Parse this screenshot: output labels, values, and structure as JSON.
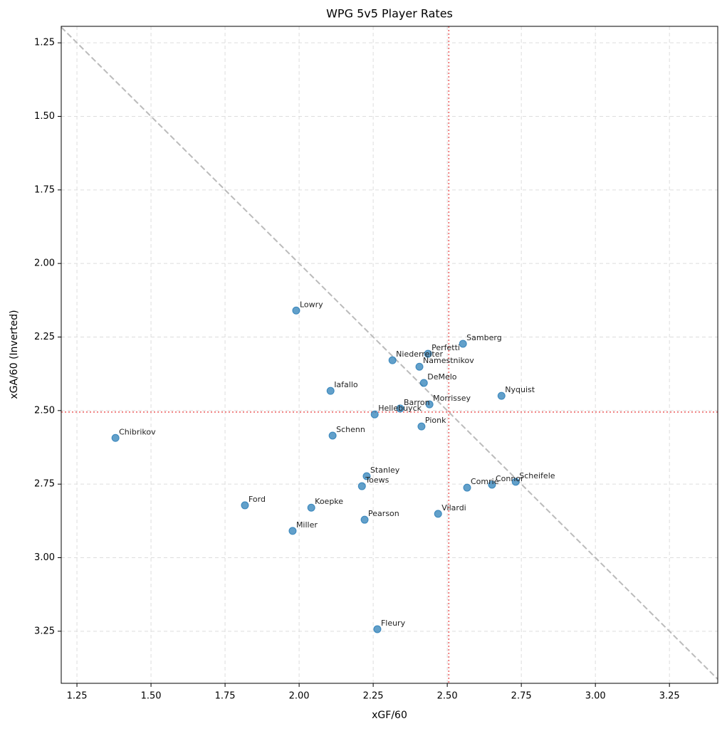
{
  "chart_data": {
    "type": "scatter",
    "title": "WPG 5v5 Player Rates",
    "x_label": "xGF/60",
    "y_label": "xGA/60 (Inverted)",
    "xlim": [
      1.197,
      3.413
    ],
    "ylim": [
      3.427,
      1.194
    ],
    "xticks": [
      {
        "value": 1.25,
        "label": "1.25"
      },
      {
        "value": 1.5,
        "label": "1.50"
      },
      {
        "value": 1.75,
        "label": "1.75"
      },
      {
        "value": 2.0,
        "label": "2.00"
      },
      {
        "value": 2.25,
        "label": "2.25"
      },
      {
        "value": 2.5,
        "label": "2.50"
      },
      {
        "value": 2.75,
        "label": "2.75"
      },
      {
        "value": 3.0,
        "label": "3.00"
      },
      {
        "value": 3.25,
        "label": "3.25"
      }
    ],
    "yticks": [
      {
        "value": 1.25,
        "label": "1.25"
      },
      {
        "value": 1.5,
        "label": "1.50"
      },
      {
        "value": 1.75,
        "label": "1.75"
      },
      {
        "value": 2.0,
        "label": "2.00"
      },
      {
        "value": 2.25,
        "label": "2.25"
      },
      {
        "value": 2.5,
        "label": "2.50"
      },
      {
        "value": 2.75,
        "label": "2.75"
      },
      {
        "value": 3.0,
        "label": "3.00"
      },
      {
        "value": 3.25,
        "label": "3.25"
      }
    ],
    "grid": true,
    "diagonal": true,
    "vline": 2.505,
    "hline": 2.505,
    "color": "#1f77b4",
    "point_labels": [
      "Lowry",
      "Samberg",
      "Perfetti",
      "Niederreiter",
      "Namestnikov",
      "DeMelo",
      "Iafallo",
      "Nyquist",
      "Morrissey",
      "Barron",
      "Hellebuyck",
      "Pionk",
      "Schenn",
      "Chibrikov",
      "Stanley",
      "Toews",
      "Scheifele",
      "Connor",
      "Comrie",
      "Ford",
      "Koepke",
      "Vilardi",
      "Pearson",
      "Miller",
      "Fleury"
    ],
    "x": [
      1.99,
      2.553,
      2.435,
      2.315,
      2.406,
      2.421,
      2.106,
      2.683,
      2.44,
      2.341,
      2.255,
      2.413,
      2.113,
      1.38,
      2.228,
      2.212,
      2.731,
      2.651,
      2.567,
      1.817,
      2.041,
      2.469,
      2.221,
      1.978,
      2.264
    ],
    "values": [
      2.16,
      2.273,
      2.307,
      2.329,
      2.351,
      2.406,
      2.433,
      2.45,
      2.479,
      2.493,
      2.513,
      2.554,
      2.585,
      2.593,
      2.723,
      2.757,
      2.742,
      2.752,
      2.762,
      2.822,
      2.83,
      2.851,
      2.871,
      2.909,
      3.243
    ]
  }
}
